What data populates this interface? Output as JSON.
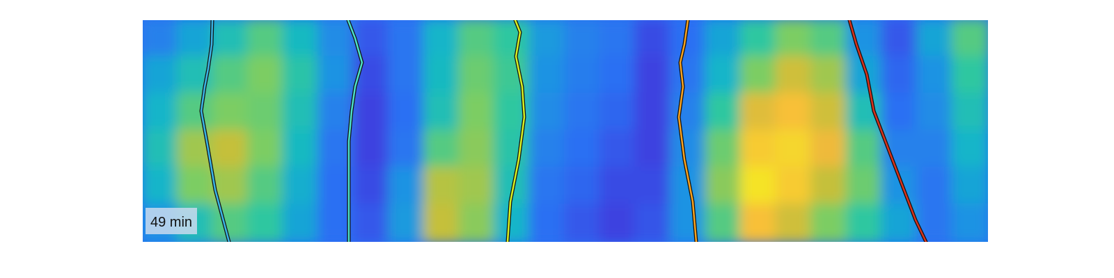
{
  "chart_data": {
    "type": "heatmap",
    "title": "",
    "xlabel": "",
    "ylabel": "",
    "grid": false,
    "colormap": "parula",
    "colormap_stops": [
      "#3e26a8",
      "#3c43e0",
      "#2b6ff3",
      "#1f93e3",
      "#13b5c9",
      "#2ec7a0",
      "#7bcd63",
      "#c5c03a",
      "#f9b93a",
      "#f4dd2b",
      "#f9fb15"
    ],
    "annotation": "49 min",
    "trajectory_outline_color": "#111111",
    "columns": 24,
    "rows": 6,
    "intensity": [
      [
        0.25,
        0.35,
        0.45,
        0.55,
        0.42,
        0.28,
        0.15,
        0.22,
        0.4,
        0.55,
        0.5,
        0.32,
        0.25,
        0.22,
        0.12,
        0.2,
        0.35,
        0.5,
        0.6,
        0.55,
        0.3,
        0.15,
        0.35,
        0.55
      ],
      [
        0.35,
        0.45,
        0.55,
        0.6,
        0.48,
        0.3,
        0.12,
        0.22,
        0.42,
        0.58,
        0.52,
        0.3,
        0.24,
        0.2,
        0.1,
        0.22,
        0.4,
        0.6,
        0.72,
        0.65,
        0.35,
        0.18,
        0.3,
        0.5
      ],
      [
        0.4,
        0.55,
        0.6,
        0.58,
        0.45,
        0.25,
        0.1,
        0.2,
        0.45,
        0.6,
        0.5,
        0.28,
        0.22,
        0.18,
        0.1,
        0.25,
        0.5,
        0.75,
        0.82,
        0.72,
        0.45,
        0.2,
        0.28,
        0.45
      ],
      [
        0.45,
        0.65,
        0.7,
        0.6,
        0.42,
        0.22,
        0.1,
        0.22,
        0.55,
        0.62,
        0.48,
        0.25,
        0.2,
        0.15,
        0.1,
        0.28,
        0.58,
        0.85,
        0.88,
        0.78,
        0.55,
        0.25,
        0.25,
        0.4
      ],
      [
        0.4,
        0.6,
        0.65,
        0.55,
        0.38,
        0.2,
        0.12,
        0.3,
        0.68,
        0.65,
        0.45,
        0.22,
        0.18,
        0.12,
        0.12,
        0.3,
        0.62,
        0.92,
        0.85,
        0.7,
        0.58,
        0.3,
        0.22,
        0.35
      ],
      [
        0.3,
        0.45,
        0.55,
        0.5,
        0.35,
        0.2,
        0.15,
        0.32,
        0.7,
        0.62,
        0.4,
        0.2,
        0.15,
        0.1,
        0.14,
        0.3,
        0.55,
        0.82,
        0.72,
        0.6,
        0.5,
        0.35,
        0.22,
        0.3
      ]
    ],
    "trajectories": [
      {
        "color": "#3ab4e6",
        "x": [
          100,
          99,
          94,
          89,
          84,
          92,
          104,
          124
        ],
        "y": [
          0,
          20,
          40,
          55,
          75,
          100,
          140,
          183
        ]
      },
      {
        "color": "#4de0c8",
        "x": [
          295,
          305,
          315,
          305,
          300,
          296,
          296,
          296
        ],
        "y": [
          0,
          15,
          35,
          55,
          75,
          100,
          140,
          183
        ]
      },
      {
        "color": "#d6f022",
        "x": [
          535,
          542,
          536,
          545,
          548,
          540,
          528,
          524
        ],
        "y": [
          0,
          10,
          30,
          55,
          80,
          115,
          150,
          183
        ]
      },
      {
        "color": "#f8a21f",
        "x": [
          783,
          778,
          772,
          776,
          770,
          778,
          790,
          795
        ],
        "y": [
          0,
          20,
          35,
          55,
          80,
          115,
          150,
          183
        ]
      },
      {
        "color": "#d8321c",
        "x": [
          1015,
          1025,
          1040,
          1050,
          1070,
          1090,
          1110,
          1125
        ],
        "y": [
          0,
          20,
          45,
          75,
          105,
          135,
          165,
          183
        ]
      }
    ],
    "xlim": [
      0,
      1214
    ],
    "ylim": [
      0,
      183
    ]
  }
}
